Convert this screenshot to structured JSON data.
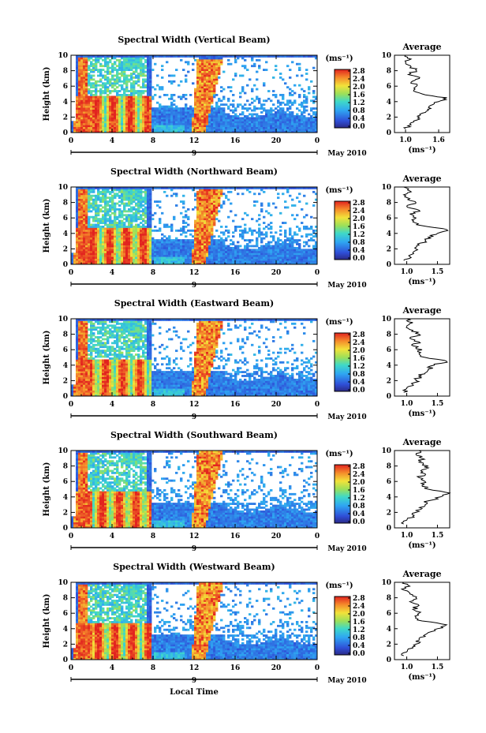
{
  "figure": {
    "xlabel": "Local Time",
    "date_label": "9",
    "month_label": "May 2010",
    "colorbar_unit": "(ms⁻¹)",
    "colorbar_ticks": [
      "0.0",
      "0.4",
      "0.8",
      "1.2",
      "1.6",
      "2.0",
      "2.4",
      "2.8"
    ],
    "avg_title": "Average",
    "avg_xlabel": "(ms⁻¹)",
    "ylabel": "Height (km)",
    "x_ticks": [
      "0",
      "4",
      "8",
      "12",
      "16",
      "20",
      "0"
    ],
    "y_ticks": [
      "0",
      "2",
      "4",
      "6",
      "8",
      "10"
    ]
  },
  "chart_data": [
    {
      "type": "heatmap",
      "title": "Spectral Width (Vertical Beam)",
      "xlabel": "",
      "ylabel": "Height (km)",
      "xlim": [
        0,
        24
      ],
      "ylim": [
        0,
        10
      ],
      "zlim": [
        0,
        3.0
      ],
      "avg": {
        "title": "Average",
        "xticks": [
          "1.0",
          "1.6"
        ],
        "xlim": [
          0.8,
          1.8
        ],
        "profile": [
          [
            1.0,
            0.5
          ],
          [
            1.1,
            1.0
          ],
          [
            1.15,
            1.5
          ],
          [
            1.25,
            2.0
          ],
          [
            1.3,
            2.5
          ],
          [
            1.4,
            3.0
          ],
          [
            1.45,
            3.5
          ],
          [
            1.6,
            4.0
          ],
          [
            1.75,
            4.5
          ],
          [
            1.3,
            5.0
          ],
          [
            1.15,
            5.5
          ],
          [
            1.2,
            6.0
          ],
          [
            1.1,
            6.5
          ],
          [
            1.25,
            7.0
          ],
          [
            1.05,
            7.5
          ],
          [
            1.2,
            8.0
          ],
          [
            1.1,
            8.5
          ],
          [
            1.0,
            9.0
          ],
          [
            1.1,
            9.5
          ],
          [
            1.0,
            10.0
          ]
        ]
      }
    },
    {
      "type": "heatmap",
      "title": "Spectral Width (Northward Beam)",
      "xlabel": "",
      "ylabel": "Height (km)",
      "xlim": [
        0,
        24
      ],
      "ylim": [
        0,
        10
      ],
      "zlim": [
        0,
        3.0
      ],
      "avg": {
        "title": "Average",
        "xticks": [
          "1.0",
          "1.5"
        ],
        "xlim": [
          0.8,
          1.7
        ],
        "profile": [
          [
            0.95,
            0.5
          ],
          [
            1.05,
            1.0
          ],
          [
            1.1,
            1.5
          ],
          [
            1.15,
            2.0
          ],
          [
            1.2,
            2.5
          ],
          [
            1.3,
            3.0
          ],
          [
            1.35,
            3.5
          ],
          [
            1.5,
            4.0
          ],
          [
            1.65,
            4.5
          ],
          [
            1.25,
            5.0
          ],
          [
            1.1,
            5.5
          ],
          [
            1.15,
            6.0
          ],
          [
            1.05,
            6.5
          ],
          [
            1.2,
            7.0
          ],
          [
            1.0,
            7.5
          ],
          [
            1.15,
            8.0
          ],
          [
            1.05,
            8.5
          ],
          [
            0.95,
            9.0
          ],
          [
            1.05,
            9.5
          ],
          [
            0.95,
            10.0
          ]
        ]
      }
    },
    {
      "type": "heatmap",
      "title": "Spectral Width (Eastward Beam)",
      "xlabel": "",
      "ylabel": "Height (km)",
      "xlim": [
        0,
        24
      ],
      "ylim": [
        0,
        10
      ],
      "zlim": [
        0,
        3.0
      ],
      "avg": {
        "title": "Average",
        "xticks": [
          "1.0",
          "1.5"
        ],
        "xlim": [
          0.8,
          1.7
        ],
        "profile": [
          [
            0.95,
            0.5
          ],
          [
            1.0,
            1.0
          ],
          [
            1.1,
            1.5
          ],
          [
            1.15,
            2.0
          ],
          [
            1.2,
            2.5
          ],
          [
            1.3,
            3.0
          ],
          [
            1.35,
            3.5
          ],
          [
            1.45,
            4.0
          ],
          [
            1.65,
            4.5
          ],
          [
            1.3,
            5.0
          ],
          [
            1.2,
            5.5
          ],
          [
            1.25,
            6.0
          ],
          [
            1.1,
            6.5
          ],
          [
            1.2,
            7.0
          ],
          [
            1.05,
            7.5
          ],
          [
            1.2,
            8.0
          ],
          [
            1.1,
            8.5
          ],
          [
            1.0,
            9.0
          ],
          [
            1.1,
            9.5
          ],
          [
            1.0,
            10.0
          ]
        ]
      }
    },
    {
      "type": "heatmap",
      "title": "Spectral Width (Southward Beam)",
      "xlabel": "",
      "ylabel": "Height (km)",
      "xlim": [
        0,
        24
      ],
      "ylim": [
        0,
        10
      ],
      "zlim": [
        0,
        3.0
      ],
      "avg": {
        "title": "Average",
        "xticks": [
          "1.0",
          "1.5"
        ],
        "xlim": [
          0.8,
          1.7
        ],
        "profile": [
          [
            0.95,
            0.5
          ],
          [
            1.0,
            1.0
          ],
          [
            1.1,
            1.5
          ],
          [
            1.15,
            2.0
          ],
          [
            1.25,
            2.5
          ],
          [
            1.3,
            3.0
          ],
          [
            1.35,
            3.5
          ],
          [
            1.55,
            4.0
          ],
          [
            1.7,
            4.5
          ],
          [
            1.35,
            5.0
          ],
          [
            1.25,
            5.5
          ],
          [
            1.3,
            6.0
          ],
          [
            1.2,
            6.5
          ],
          [
            1.3,
            7.0
          ],
          [
            1.25,
            7.5
          ],
          [
            1.35,
            8.0
          ],
          [
            1.2,
            8.5
          ],
          [
            1.25,
            9.0
          ],
          [
            1.15,
            9.5
          ],
          [
            1.2,
            10.0
          ]
        ]
      }
    },
    {
      "type": "heatmap",
      "title": "Spectral Width (Westward Beam)",
      "xlabel": "Local Time",
      "ylabel": "Height (km)",
      "xlim": [
        0,
        24
      ],
      "ylim": [
        0,
        10
      ],
      "zlim": [
        0,
        3.0
      ],
      "avg": {
        "title": "Average",
        "xticks": [
          "1.0",
          "1.5"
        ],
        "xlim": [
          0.8,
          1.7
        ],
        "profile": [
          [
            0.95,
            0.5
          ],
          [
            1.0,
            1.0
          ],
          [
            1.1,
            1.5
          ],
          [
            1.15,
            2.0
          ],
          [
            1.2,
            2.5
          ],
          [
            1.3,
            3.0
          ],
          [
            1.35,
            3.5
          ],
          [
            1.5,
            4.0
          ],
          [
            1.65,
            4.5
          ],
          [
            1.25,
            5.0
          ],
          [
            1.15,
            5.5
          ],
          [
            1.2,
            6.0
          ],
          [
            1.1,
            6.5
          ],
          [
            1.2,
            7.0
          ],
          [
            1.05,
            7.5
          ],
          [
            1.15,
            8.0
          ],
          [
            1.05,
            8.5
          ],
          [
            0.95,
            9.0
          ],
          [
            1.05,
            9.5
          ],
          [
            0.95,
            10.0
          ]
        ]
      }
    }
  ]
}
